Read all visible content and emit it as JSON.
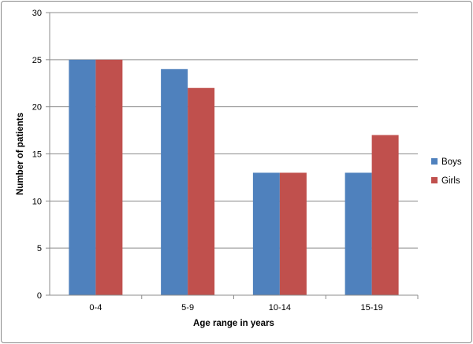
{
  "chart_data": {
    "type": "bar",
    "categories": [
      "0-4",
      "5-9",
      "10-14",
      "15-19"
    ],
    "series": [
      {
        "name": "Boys",
        "values": [
          25,
          24,
          13,
          13
        ],
        "color": "#4F81BD"
      },
      {
        "name": "Girls",
        "values": [
          25,
          22,
          13,
          17
        ],
        "color": "#C0504D"
      }
    ],
    "xlabel": "Age range in years",
    "ylabel": "Number of patients",
    "ylim": [
      0,
      30
    ],
    "yticks": [
      0,
      5,
      10,
      15,
      20,
      25,
      30
    ],
    "grid": true,
    "legend_position": "right"
  }
}
